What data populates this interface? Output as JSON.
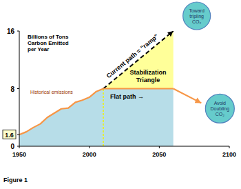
{
  "chart_data": {
    "type": "line",
    "caption": "Figure 1",
    "ylabel": [
      "Billions of Tons",
      "Carbon Emitted",
      "per Year"
    ],
    "xlim": [
      1950,
      2100
    ],
    "xticks": [
      1950,
      2000,
      2050,
      2100
    ],
    "ylim": [
      0,
      16
    ],
    "yticks": [
      0,
      8,
      16
    ],
    "y_marker": 1.6,
    "grid": false,
    "series": [
      {
        "name": "Historical emissions",
        "color": "#f79646",
        "line_style": "solid",
        "x": [
          1950,
          1955,
          1960,
          1965,
          1970,
          1975,
          1980,
          1985,
          1990,
          1995,
          2000,
          2005,
          2010
        ],
        "values": [
          1.6,
          2.0,
          2.6,
          3.1,
          4.0,
          4.6,
          5.2,
          5.3,
          6.1,
          6.4,
          6.8,
          7.6,
          8.0
        ]
      },
      {
        "name": "Current path = \"ramp\"",
        "color": "#000000",
        "line_style": "dashed",
        "marker": "arrow",
        "x": [
          2010,
          2060
        ],
        "values": [
          8,
          16
        ]
      },
      {
        "name": "Flat path →",
        "color": "#f79646",
        "line_style": "solid",
        "x": [
          2010,
          2060
        ],
        "values": [
          8,
          8
        ]
      },
      {
        "name": "Avoid Doubling CO₂",
        "color": "#f79646",
        "line_style": "solid",
        "marker": "arrow",
        "x": [
          2060,
          2080
        ],
        "values": [
          8,
          6
        ]
      }
    ],
    "annotations": [
      "Stabilization Triangle",
      "Toward tripling CO₂"
    ]
  }
}
